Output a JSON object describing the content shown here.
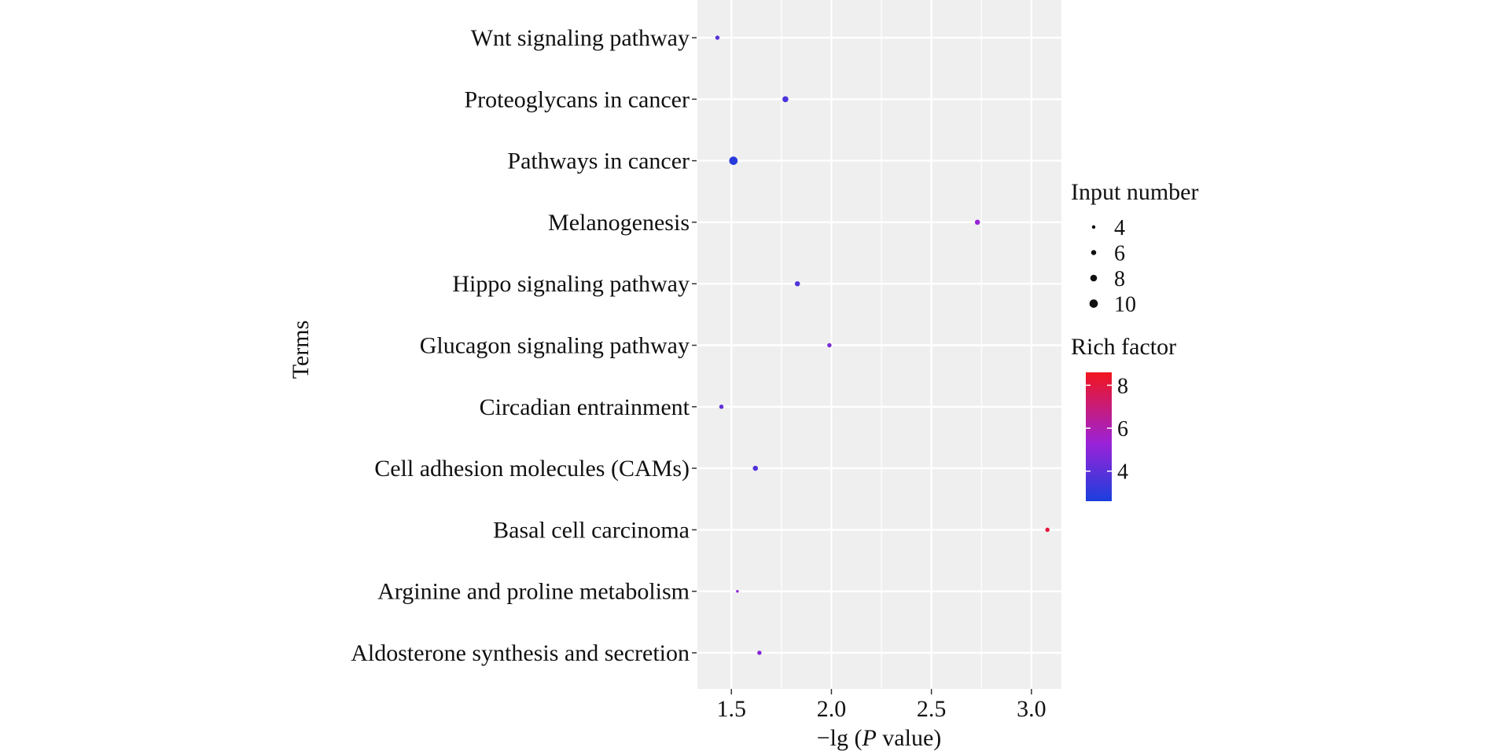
{
  "chart_data": {
    "type": "scatter",
    "title": "",
    "xlabel": "−lg (P value)",
    "xlabel_prefix": "−lg (",
    "xlabel_italic": "P",
    "xlabel_suffix": " value)",
    "ylabel": "Terms",
    "xlim": [
      1.33,
      3.15
    ],
    "xticks": [
      {
        "value": 1.5,
        "label": "1.5"
      },
      {
        "value": 2.0,
        "label": "2.0"
      },
      {
        "value": 2.5,
        "label": "2.5"
      },
      {
        "value": 3.0,
        "label": "3.0"
      }
    ],
    "grid": true,
    "legend_position": "right",
    "colors": {
      "panel": "#efefef",
      "grid": "#ffffff",
      "low": "#1a3fdc",
      "mid": "#9b22d8",
      "high": "#f2151e"
    },
    "points": [
      {
        "term": "Wnt signaling pathway",
        "x": 1.43,
        "input_number": 5,
        "rich_factor": 3.9
      },
      {
        "term": "Proteoglycans in cancer",
        "x": 1.77,
        "input_number": 7,
        "rich_factor": 3.6
      },
      {
        "term": "Pathways in cancer",
        "x": 1.51,
        "input_number": 10,
        "rich_factor": 2.9
      },
      {
        "term": "Melanogenesis",
        "x": 2.73,
        "input_number": 6,
        "rich_factor": 5.2
      },
      {
        "term": "Hippo signaling pathway",
        "x": 1.83,
        "input_number": 6,
        "rich_factor": 3.7
      },
      {
        "term": "Glucagon signaling pathway",
        "x": 1.99,
        "input_number": 5,
        "rich_factor": 4.6
      },
      {
        "term": "Circadian entrainment",
        "x": 1.45,
        "input_number": 5,
        "rich_factor": 4.1
      },
      {
        "term": "Cell adhesion molecules (CAMs)",
        "x": 1.62,
        "input_number": 6,
        "rich_factor": 3.8
      },
      {
        "term": "Basal cell carcinoma",
        "x": 3.08,
        "input_number": 5,
        "rich_factor": 8.1
      },
      {
        "term": "Arginine and proline metabolism",
        "x": 1.53,
        "input_number": 3,
        "rich_factor": 5.0
      },
      {
        "term": "Aldosterone synthesis and secretion",
        "x": 1.64,
        "input_number": 5,
        "rich_factor": 4.8
      }
    ],
    "size_legend": {
      "title": "Input number",
      "entries": [
        {
          "value": 4,
          "label": "4"
        },
        {
          "value": 6,
          "label": "6"
        },
        {
          "value": 8,
          "label": "8"
        },
        {
          "value": 10,
          "label": "10"
        }
      ]
    },
    "color_legend": {
      "title": "Rich factor",
      "range": [
        2.6,
        8.6
      ],
      "ticks": [
        {
          "value": 4,
          "label": "4"
        },
        {
          "value": 6,
          "label": "6"
        },
        {
          "value": 8,
          "label": "8"
        }
      ]
    }
  }
}
